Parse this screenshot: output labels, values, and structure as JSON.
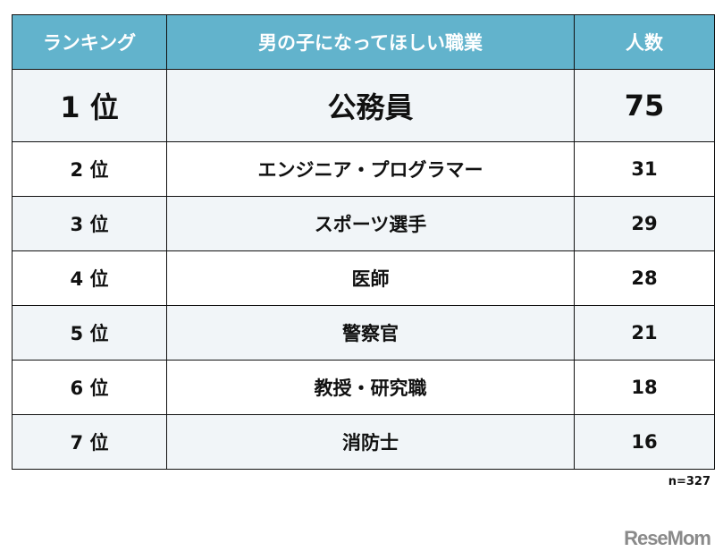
{
  "table": {
    "headers": {
      "rank": "ランキング",
      "job": "男の子になってほしい職業",
      "count": "人数"
    },
    "rows": [
      {
        "rank": "1 位",
        "job": "公務員",
        "count": "75"
      },
      {
        "rank": "2 位",
        "job": "エンジニア・プログラマー",
        "count": "31"
      },
      {
        "rank": "3 位",
        "job": "スポーツ選手",
        "count": "29"
      },
      {
        "rank": "4 位",
        "job": "医師",
        "count": "28"
      },
      {
        "rank": "5 位",
        "job": "警察官",
        "count": "21"
      },
      {
        "rank": "6 位",
        "job": "教授・研究職",
        "count": "18"
      },
      {
        "rank": "7 位",
        "job": "消防士",
        "count": "16"
      }
    ],
    "colors": {
      "header_bg": "#62b3cc",
      "header_text": "#ffffff",
      "stripe": "#f1f5f8"
    }
  },
  "footer": {
    "sample_size": "n=327",
    "logo": "ReseMom"
  }
}
